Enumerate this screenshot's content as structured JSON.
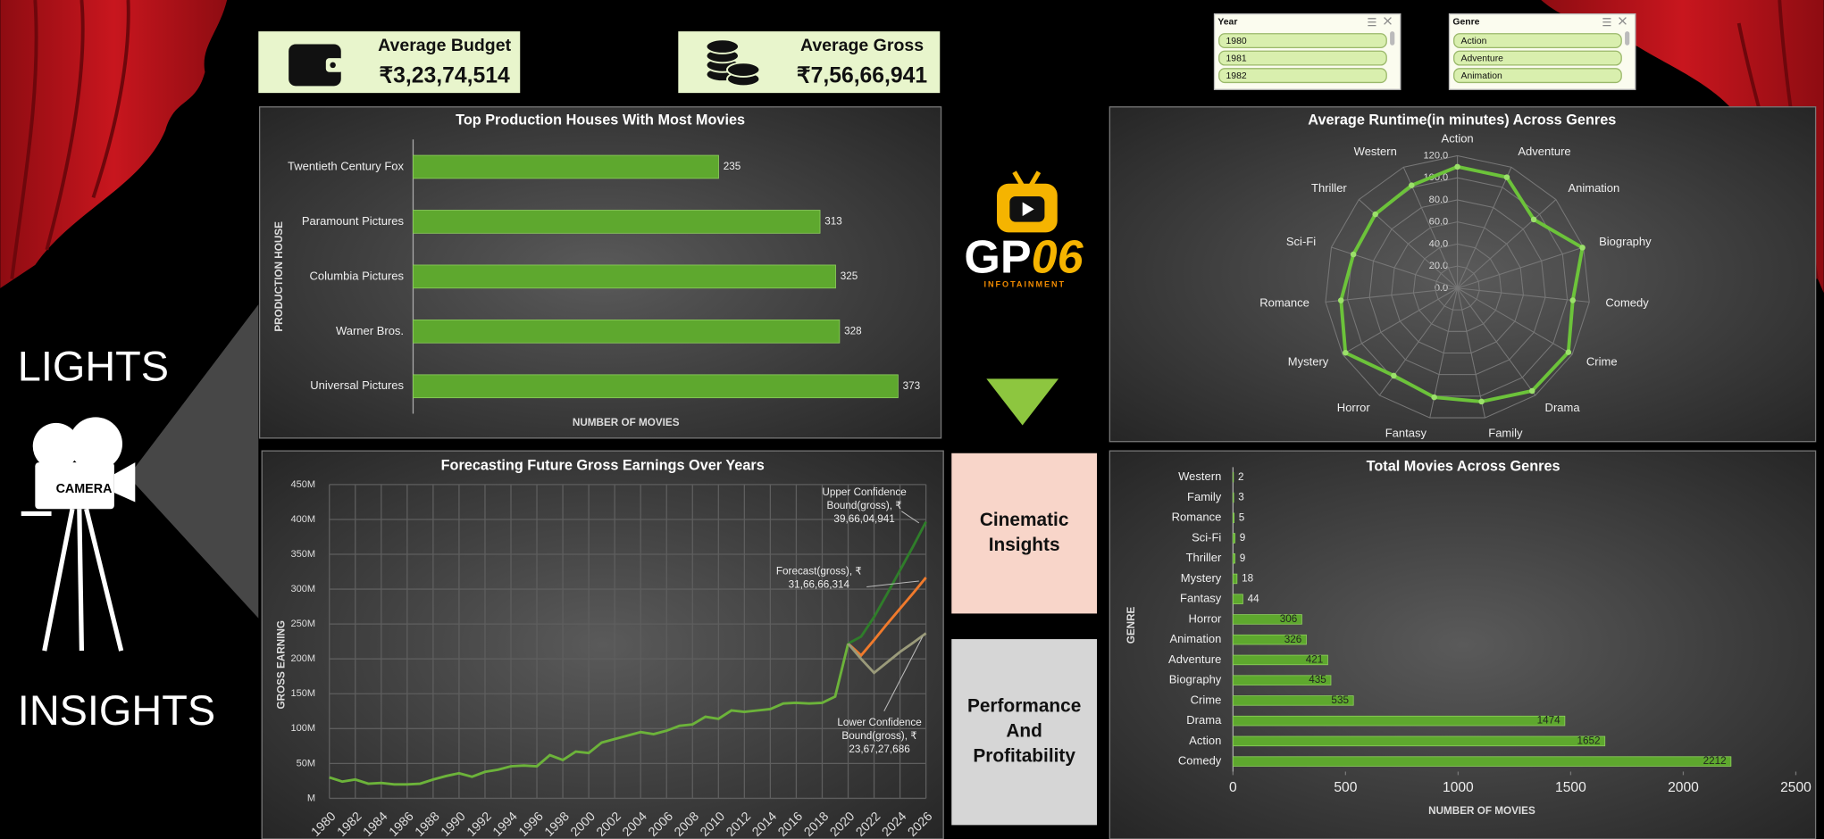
{
  "side": {
    "top": "LIGHTS",
    "bottom": "INSIGHTS",
    "camera": "CAMERA"
  },
  "kpis": [
    {
      "label": "Average Budget",
      "value": "₹3,23,74,514"
    },
    {
      "label": "Average Gross",
      "value": "₹7,56,66,941"
    }
  ],
  "slicers": [
    {
      "title": "Year",
      "items": [
        "1980",
        "1981",
        "1982"
      ]
    },
    {
      "title": "Genre",
      "items": [
        "Action",
        "Adventure",
        "Animation"
      ]
    }
  ],
  "logo": {
    "brand": "GP",
    "number": "06",
    "tagline": "INFOTAINMENT"
  },
  "nav": [
    [
      "Cinematic",
      "Insights"
    ],
    [
      "Performance",
      "And",
      "Profitability"
    ]
  ],
  "chart_data": [
    {
      "type": "bar",
      "orientation": "horizontal",
      "title": "Top Production Houses With Most Movies",
      "x_label": "NUMBER OF MOVIES",
      "y_label": "PRODUCTION HOUSE",
      "categories": [
        "Twentieth Century Fox",
        "Paramount Pictures",
        "Columbia Pictures",
        "Warner Bros.",
        "Universal Pictures"
      ],
      "values": [
        235,
        313,
        325,
        328,
        373
      ],
      "color": "#5ea82e"
    },
    {
      "type": "line",
      "title": "Forecasting Future Gross Earnings Over Years",
      "y_label": "GROSS EARNING",
      "x": [
        1980,
        1981,
        1982,
        1983,
        1984,
        1985,
        1986,
        1987,
        1988,
        1989,
        1990,
        1991,
        1992,
        1993,
        1994,
        1995,
        1996,
        1997,
        1998,
        1999,
        2000,
        2001,
        2002,
        2003,
        2004,
        2005,
        2006,
        2007,
        2008,
        2009,
        2010,
        2011,
        2012,
        2013,
        2014,
        2015,
        2016,
        2017,
        2018,
        2019,
        2020,
        2021,
        2022,
        2023,
        2024,
        2025,
        2026
      ],
      "xlim": [
        1980,
        2026
      ],
      "xticks": [
        1980,
        1982,
        1984,
        1986,
        1988,
        1990,
        1992,
        1994,
        1996,
        1998,
        2000,
        2002,
        2004,
        2006,
        2008,
        2010,
        2012,
        2014,
        2016,
        2018,
        2020,
        2022,
        2024,
        2026
      ],
      "ylim": [
        0,
        450
      ],
      "yticks": [
        {
          "value": 0,
          "label": "M"
        },
        {
          "value": 50,
          "label": "50M"
        },
        {
          "value": 100,
          "label": "100M"
        },
        {
          "value": 150,
          "label": "150M"
        },
        {
          "value": 200,
          "label": "200M"
        },
        {
          "value": 250,
          "label": "250M"
        },
        {
          "value": 300,
          "label": "300M"
        },
        {
          "value": 350,
          "label": "350M"
        },
        {
          "value": 400,
          "label": "400M"
        },
        {
          "value": 450,
          "label": "450M"
        }
      ],
      "grid": true,
      "series": [
        {
          "color": "#6cb33a",
          "values": [
            30,
            24,
            27,
            21,
            22,
            20,
            20,
            21,
            27,
            32,
            36,
            31,
            38,
            41,
            46,
            47,
            46,
            62,
            55,
            67,
            65,
            80,
            85,
            90,
            95,
            92,
            97,
            104,
            106,
            117,
            114,
            126,
            124,
            126,
            128,
            136,
            137,
            136,
            137,
            146,
            222,
            null,
            null,
            null,
            null,
            null,
            null
          ]
        },
        {
          "color": "#f07a2c",
          "values": [
            null,
            null,
            null,
            null,
            null,
            null,
            null,
            null,
            null,
            null,
            null,
            null,
            null,
            null,
            null,
            null,
            null,
            null,
            null,
            null,
            null,
            null,
            null,
            null,
            null,
            null,
            null,
            null,
            null,
            null,
            null,
            null,
            null,
            null,
            null,
            null,
            null,
            null,
            null,
            null,
            222,
            205,
            227,
            250,
            272,
            294,
            316.666314
          ]
        },
        {
          "color": "#2f7d2a",
          "values": [
            null,
            null,
            null,
            null,
            null,
            null,
            null,
            null,
            null,
            null,
            null,
            null,
            null,
            null,
            null,
            null,
            null,
            null,
            null,
            null,
            null,
            null,
            null,
            null,
            null,
            null,
            null,
            null,
            null,
            null,
            null,
            null,
            null,
            null,
            null,
            null,
            null,
            null,
            null,
            null,
            222,
            232,
            260,
            293,
            327,
            361,
            396.604941
          ]
        },
        {
          "color": "#9a9a7a",
          "values": [
            null,
            null,
            null,
            null,
            null,
            null,
            null,
            null,
            null,
            null,
            null,
            null,
            null,
            null,
            null,
            null,
            null,
            null,
            null,
            null,
            null,
            null,
            null,
            null,
            null,
            null,
            null,
            null,
            null,
            null,
            null,
            null,
            null,
            null,
            null,
            null,
            null,
            null,
            null,
            null,
            222,
            200,
            180,
            195,
            210,
            223,
            236.727686
          ]
        }
      ],
      "annotations": [
        {
          "lines": [
            "Upper Confidence",
            "Bound(gross), ₹",
            "39,66,04,941"
          ]
        },
        {
          "lines": [
            "Forecast(gross), ₹",
            "31,66,66,314"
          ]
        },
        {
          "lines": [
            "Lower Confidence",
            "Bound(gross), ₹",
            "23,67,27,686"
          ]
        }
      ]
    },
    {
      "type": "radar",
      "title": "Average Runtime(in minutes) Across Genres",
      "categories": [
        "Action",
        "Adventure",
        "Animation",
        "Biography",
        "Comedy",
        "Crime",
        "Drama",
        "Family",
        "Fantasy",
        "Horror",
        "Mystery",
        "Romance",
        "Sci-Fi",
        "Thriller",
        "Western"
      ],
      "values": [
        110,
        110,
        93,
        119,
        105,
        116,
        115,
        105,
        101,
        98,
        117,
        106,
        99,
        100,
        102
      ],
      "ylim": [
        0,
        120
      ],
      "yticks": [
        {
          "value": 0,
          "label": "0.0"
        },
        {
          "value": 20,
          "label": "20.0"
        },
        {
          "value": 40,
          "label": "40.0"
        },
        {
          "value": 60,
          "label": "60.0"
        },
        {
          "value": 80,
          "label": "80.0"
        },
        {
          "value": 100,
          "label": "100.0"
        },
        {
          "value": 120,
          "label": "120.0"
        }
      ],
      "color": "#6cc33a"
    },
    {
      "type": "bar",
      "orientation": "horizontal",
      "title": "Total Movies Across Genres",
      "x_label": "NUMBER OF MOVIES",
      "y_label": "GENRE",
      "categories": [
        "Western",
        "Family",
        "Romance",
        "Sci-Fi",
        "Thriller",
        "Mystery",
        "Fantasy",
        "Horror",
        "Animation",
        "Adventure",
        "Biography",
        "Crime",
        "Drama",
        "Action",
        "Comedy"
      ],
      "values": [
        2,
        3,
        5,
        9,
        9,
        18,
        44,
        306,
        326,
        421,
        435,
        535,
        1474,
        1652,
        2212
      ],
      "xlim": [
        0,
        2500
      ],
      "xticks": [
        0,
        500,
        1000,
        1500,
        2000,
        2500
      ],
      "color": "#5ea82e"
    }
  ]
}
